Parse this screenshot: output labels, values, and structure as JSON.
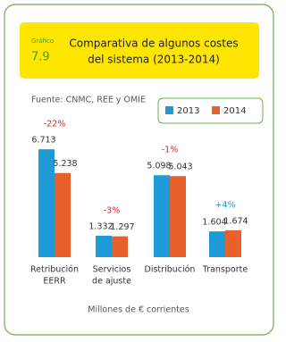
{
  "chart_data": {
    "type": "bar",
    "figure_label": "Gráfico",
    "figure_number": "7.9",
    "title": [
      "Comparativa de algunos costes",
      "del sistema (2013-2014)"
    ],
    "source": "Fuente: CNMC, REE y OMIE",
    "x_label": "Millones de € corrientes",
    "categories": [
      [
        "Retribución",
        "EERR"
      ],
      [
        "Servicios",
        "de ajuste"
      ],
      [
        "Distribución"
      ],
      [
        "Transporte"
      ]
    ],
    "series": [
      {
        "name": "2013",
        "color": "#1e9ad6",
        "values": [
          6713,
          1332,
          5098,
          1604
        ],
        "value_labels": [
          "6.713",
          "1.332",
          "5.098",
          "1.604"
        ]
      },
      {
        "name": "2014",
        "color": "#e8602c",
        "values": [
          5238,
          1297,
          5043,
          1674
        ],
        "value_labels": [
          "5.238",
          "1.297",
          "5.043",
          "1.674"
        ]
      }
    ],
    "annotations": [
      {
        "text": "-22%",
        "color": "#d9262c"
      },
      {
        "text": "-3%",
        "color": "#d9262c"
      },
      {
        "text": "-1%",
        "color": "#d9262c"
      },
      {
        "text": "+4%",
        "color": "#1e9ad6"
      }
    ]
  }
}
